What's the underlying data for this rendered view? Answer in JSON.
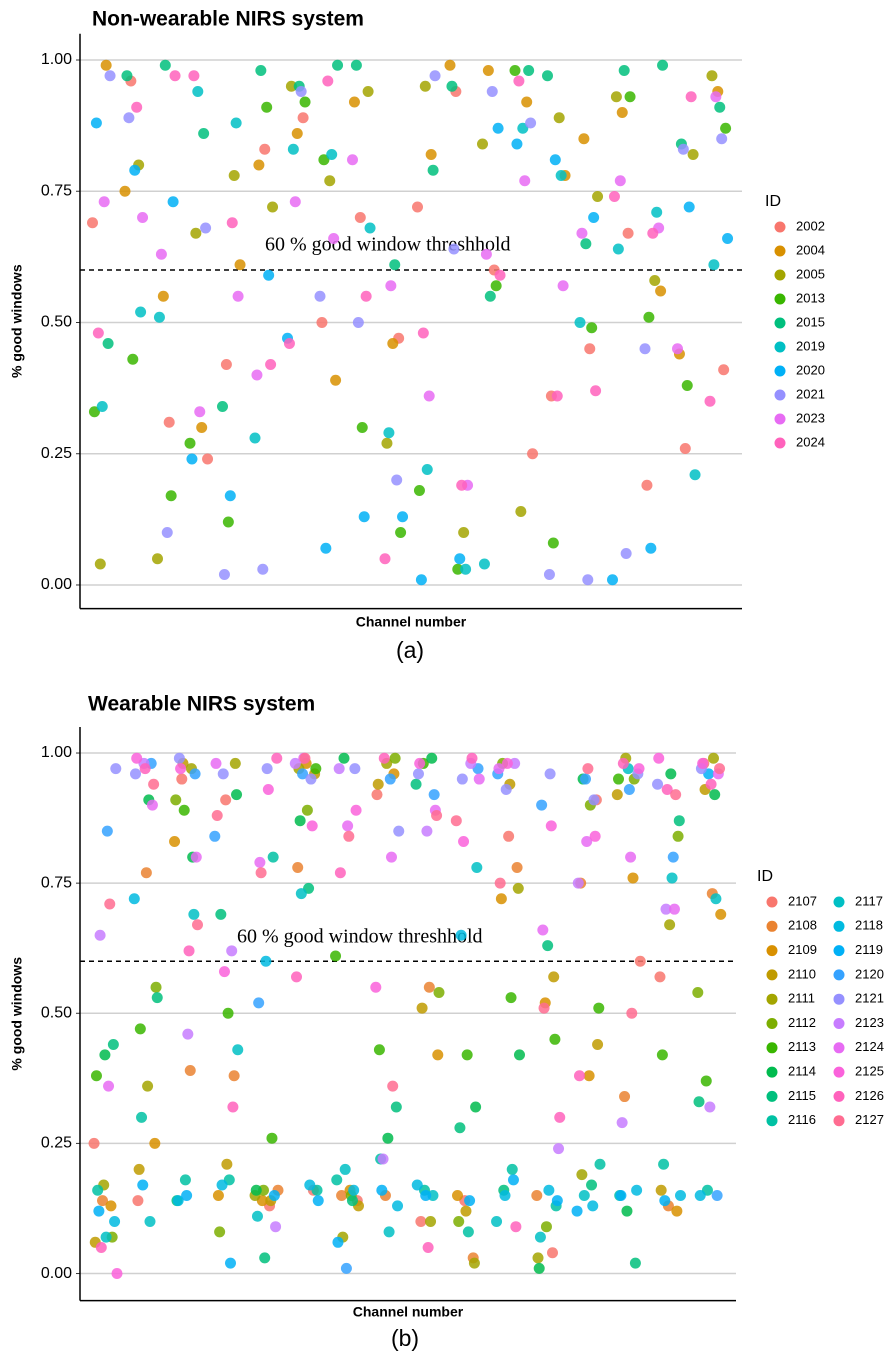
{
  "chart_data": [
    {
      "type": "scatter",
      "title": "Non-wearable NIRS system",
      "xlabel": "Channel number",
      "ylabel": "% good windows",
      "caption": "(a)",
      "legend_title": "ID",
      "grid": true,
      "ylim": [
        -0.045,
        1.05
      ],
      "yticks": [
        {
          "value": 0,
          "label": "0.00"
        },
        0.25,
        {
          "value": 0.5,
          "label": "0.50"
        },
        0.75,
        {
          "value": 1,
          "label": "1.00"
        }
      ],
      "threshold": {
        "value": 0.6,
        "label": "60 % good window threshhold"
      },
      "categories": [
        null,
        null,
        null,
        null,
        null,
        null,
        null,
        null,
        null,
        null,
        null,
        null,
        null,
        null,
        null,
        null,
        null,
        null,
        null,
        null
      ],
      "series": [
        {
          "name": "2002",
          "color": "#F8766D",
          "values": [
            0.69,
            0.96,
            0.31,
            0.24,
            0.42,
            0.83,
            0.89,
            0.5,
            0.7,
            0.47,
            0.72,
            0.94,
            0.6,
            0.25,
            0.36,
            0.45,
            0.67,
            0.19,
            0.26,
            0.41
          ]
        },
        {
          "name": "2004",
          "color": "#D89000",
          "values": [
            0.99,
            0.75,
            0.55,
            0.3,
            0.61,
            0.8,
            0.86,
            0.39,
            0.92,
            0.46,
            0.82,
            0.99,
            0.98,
            0.92,
            0.78,
            0.85,
            0.9,
            0.56,
            0.44,
            0.94
          ]
        },
        {
          "name": "2005",
          "color": "#A3A500",
          "values": [
            0.04,
            0.8,
            0.05,
            0.67,
            0.78,
            0.72,
            0.95,
            0.77,
            0.94,
            0.27,
            0.95,
            0.1,
            0.84,
            0.14,
            0.89,
            0.74,
            0.93,
            0.58,
            0.82,
            0.97
          ]
        },
        {
          "name": "2013",
          "color": "#39B600",
          "values": [
            0.33,
            0.43,
            0.17,
            0.27,
            0.12,
            0.91,
            0.92,
            0.81,
            0.3,
            0.1,
            0.18,
            0.03,
            0.57,
            0.98,
            0.08,
            0.49,
            0.93,
            0.51,
            0.38,
            0.87
          ]
        },
        {
          "name": "2015",
          "color": "#00BF7D",
          "values": [
            0.46,
            0.97,
            0.99,
            0.86,
            0.34,
            0.98,
            0.95,
            0.99,
            0.99,
            0.61,
            0.79,
            0.95,
            0.55,
            0.98,
            0.97,
            0.65,
            0.98,
            0.99,
            0.84,
            0.91
          ]
        },
        {
          "name": "2019",
          "color": "#00BFC4",
          "values": [
            0.34,
            0.52,
            0.51,
            0.94,
            0.88,
            0.28,
            0.83,
            0.82,
            0.68,
            0.29,
            0.22,
            0.03,
            0.04,
            0.87,
            0.78,
            0.5,
            0.64,
            0.71,
            0.21,
            0.61
          ]
        },
        {
          "name": "2020",
          "color": "#00B0F6",
          "values": [
            0.88,
            0.79,
            0.73,
            0.24,
            0.17,
            0.59,
            0.47,
            0.07,
            0.13,
            0.13,
            0.01,
            0.05,
            0.87,
            0.84,
            0.81,
            0.7,
            0.01,
            0.07,
            0.72,
            0.66
          ]
        },
        {
          "name": "2021",
          "color": "#9590FF",
          "values": [
            0.97,
            0.89,
            0.1,
            0.68,
            0.02,
            0.03,
            0.94,
            0.55,
            0.5,
            0.2,
            0.97,
            0.64,
            0.94,
            0.88,
            0.02,
            0.01,
            0.06,
            0.45,
            0.83,
            0.85
          ]
        },
        {
          "name": "2023",
          "color": "#E76BF3",
          "values": [
            0.73,
            0.7,
            0.63,
            0.33,
            0.55,
            0.4,
            0.73,
            0.66,
            0.81,
            0.57,
            0.36,
            0.19,
            0.63,
            0.77,
            0.57,
            0.67,
            0.77,
            0.68,
            0.45,
            0.93
          ]
        },
        {
          "name": "2024",
          "color": "#FF62BC",
          "values": [
            0.48,
            0.91,
            0.97,
            0.97,
            0.69,
            0.42,
            0.46,
            0.96,
            0.55,
            0.05,
            0.48,
            0.19,
            0.59,
            0.96,
            0.36,
            0.37,
            0.74,
            0.67,
            0.93,
            0.35
          ]
        }
      ]
    },
    {
      "type": "scatter",
      "title": "Wearable NIRS system",
      "xlabel": "Channel number",
      "ylabel": "% good windows",
      "caption": "(b)",
      "legend_title": "ID",
      "grid": true,
      "ylim": [
        -0.052,
        1.05
      ],
      "yticks": [
        {
          "value": 0,
          "label": "0.00"
        },
        0.25,
        {
          "value": 0.5,
          "label": "0.50"
        },
        0.75,
        {
          "value": 1,
          "label": "1.00"
        }
      ],
      "threshold": {
        "value": 0.6,
        "label": "60 % good window threshhold"
      },
      "categories": [
        null,
        null,
        null,
        null,
        null,
        null,
        null,
        null,
        null,
        null,
        null,
        null,
        null,
        null,
        null,
        null
      ],
      "series": [
        {
          "name": "2107",
          "color": "#F8766D",
          "values": [
            0.25,
            0.14,
            0.95,
            0.91,
            0.13,
            0.16,
            0.14,
            0.92,
            0.1,
            0.14,
            0.84,
            0.04,
            0.91,
            0.6,
            0.57,
            0.98
          ]
        },
        {
          "name": "2108",
          "color": "#EA8331",
          "values": [
            0.14,
            0.77,
            0.39,
            0.38,
            0.16,
            0.78,
            0.15,
            0.15,
            0.55,
            0.03,
            0.78,
            0.15,
            0.75,
            0.34,
            0.13,
            0.73
          ]
        },
        {
          "name": "2109",
          "color": "#D89000",
          "values": [
            0.13,
            0.25,
            0.83,
            0.15,
            0.14,
            0.98,
            0.16,
            0.96,
            0.42,
            0.15,
            0.72,
            0.52,
            0.38,
            0.76,
            0.12,
            0.69
          ]
        },
        {
          "name": "2110",
          "color": "#C09B00",
          "values": [
            0.06,
            0.2,
            0.98,
            0.21,
            0.14,
            0.96,
            0.13,
            0.94,
            0.51,
            0.12,
            0.94,
            0.57,
            0.44,
            0.92,
            0.16,
            0.93
          ]
        },
        {
          "name": "2111",
          "color": "#A3A500",
          "values": [
            0.17,
            0.36,
            0.97,
            0.98,
            0.15,
            0.97,
            0.07,
            0.98,
            0.1,
            0.02,
            0.74,
            0.03,
            0.19,
            0.99,
            0.67,
            0.99
          ]
        },
        {
          "name": "2112",
          "color": "#7CAE00",
          "values": [
            0.07,
            0.55,
            0.91,
            0.08,
            0.16,
            0.89,
            0.15,
            0.99,
            0.54,
            0.1,
            0.98,
            0.09,
            0.9,
            0.95,
            0.84,
            0.54
          ]
        },
        {
          "name": "2113",
          "color": "#39B600",
          "values": [
            0.38,
            0.47,
            0.89,
            0.5,
            0.26,
            0.97,
            0.61,
            0.43,
            0.98,
            0.42,
            0.53,
            0.45,
            0.51,
            0.95,
            0.42,
            0.37
          ]
        },
        {
          "name": "2114",
          "color": "#00BB4E",
          "values": [
            0.42,
            0.91,
            0.8,
            0.92,
            0.16,
            0.87,
            0.99,
            0.26,
            0.99,
            0.32,
            0.42,
            0.01,
            0.95,
            0.12,
            0.96,
            0.92
          ]
        },
        {
          "name": "2115",
          "color": "#00BF7D",
          "values": [
            0.44,
            0.53,
            0.14,
            0.69,
            0.03,
            0.74,
            0.14,
            0.32,
            0.94,
            0.28,
            0.16,
            0.63,
            0.17,
            0.02,
            0.87,
            0.33
          ]
        },
        {
          "name": "2116",
          "color": "#00C1A3",
          "values": [
            0.16,
            0.3,
            0.18,
            0.18,
            0.8,
            0.16,
            0.18,
            0.22,
            0.16,
            0.08,
            0.2,
            0.13,
            0.21,
            0.15,
            0.21,
            0.16
          ]
        },
        {
          "name": "2117",
          "color": "#00BFC4",
          "values": [
            0.07,
            0.1,
            0.69,
            0.43,
            0.11,
            0.73,
            0.2,
            0.08,
            0.15,
            0.78,
            0.1,
            0.07,
            0.15,
            0.97,
            0.76,
            0.72
          ]
        },
        {
          "name": "2118",
          "color": "#00BAE0",
          "values": [
            0.1,
            0.72,
            0.14,
            0.17,
            0.6,
            0.17,
            0.16,
            0.13,
            0.17,
            0.65,
            0.15,
            0.16,
            0.13,
            0.16,
            0.15,
            0.15
          ]
        },
        {
          "name": "2119",
          "color": "#00B0F6",
          "values": [
            0.12,
            0.17,
            0.15,
            0.02,
            0.15,
            0.14,
            0.06,
            0.16,
            0.15,
            0.14,
            0.18,
            0.14,
            0.12,
            0.15,
            0.14,
            0.96
          ]
        },
        {
          "name": "2120",
          "color": "#35A2FF",
          "values": [
            0.85,
            0.98,
            0.96,
            0.84,
            0.52,
            0.96,
            0.01,
            0.95,
            0.92,
            0.97,
            0.96,
            0.9,
            0.95,
            0.93,
            0.8,
            0.15
          ]
        },
        {
          "name": "2121",
          "color": "#9590FF",
          "values": [
            0.97,
            0.96,
            0.99,
            0.96,
            0.97,
            0.95,
            0.97,
            0.85,
            0.96,
            0.95,
            0.93,
            0.96,
            0.91,
            0.96,
            0.94,
            0.97
          ]
        },
        {
          "name": "2123",
          "color": "#C77CFF",
          "values": [
            0.65,
            0.98,
            0.46,
            0.62,
            0.09,
            0.98,
            0.97,
            0.22,
            0.85,
            0.98,
            0.98,
            0.24,
            0.75,
            0.29,
            0.7,
            0.32
          ]
        },
        {
          "name": "2124",
          "color": "#E76BF3",
          "values": [
            0.36,
            0.9,
            0.8,
            0.98,
            0.79,
            0.99,
            0.86,
            0.8,
            0.89,
            0.95,
            0.97,
            0.66,
            0.83,
            0.8,
            0.7,
            0.96
          ]
        },
        {
          "name": "2125",
          "color": "#FA62DB",
          "values": [
            0.0,
            0.99,
            0.97,
            0.58,
            0.93,
            0.86,
            0.89,
            0.55,
            0.98,
            0.83,
            0.98,
            0.86,
            0.84,
            0.97,
            0.99,
            0.98
          ]
        },
        {
          "name": "2126",
          "color": "#FF62BC",
          "values": [
            0.05,
            0.97,
            0.62,
            0.32,
            0.99,
            0.57,
            0.77,
            0.99,
            0.05,
            0.99,
            0.09,
            0.3,
            0.38,
            0.98,
            0.93,
            0.94
          ]
        },
        {
          "name": "2127",
          "color": "#FF6C91",
          "values": [
            0.71,
            0.94,
            0.67,
            0.88,
            0.77,
            0.99,
            0.84,
            0.36,
            0.88,
            0.87,
            0.75,
            0.51,
            0.97,
            0.5,
            0.92,
            0.97
          ]
        }
      ]
    }
  ]
}
